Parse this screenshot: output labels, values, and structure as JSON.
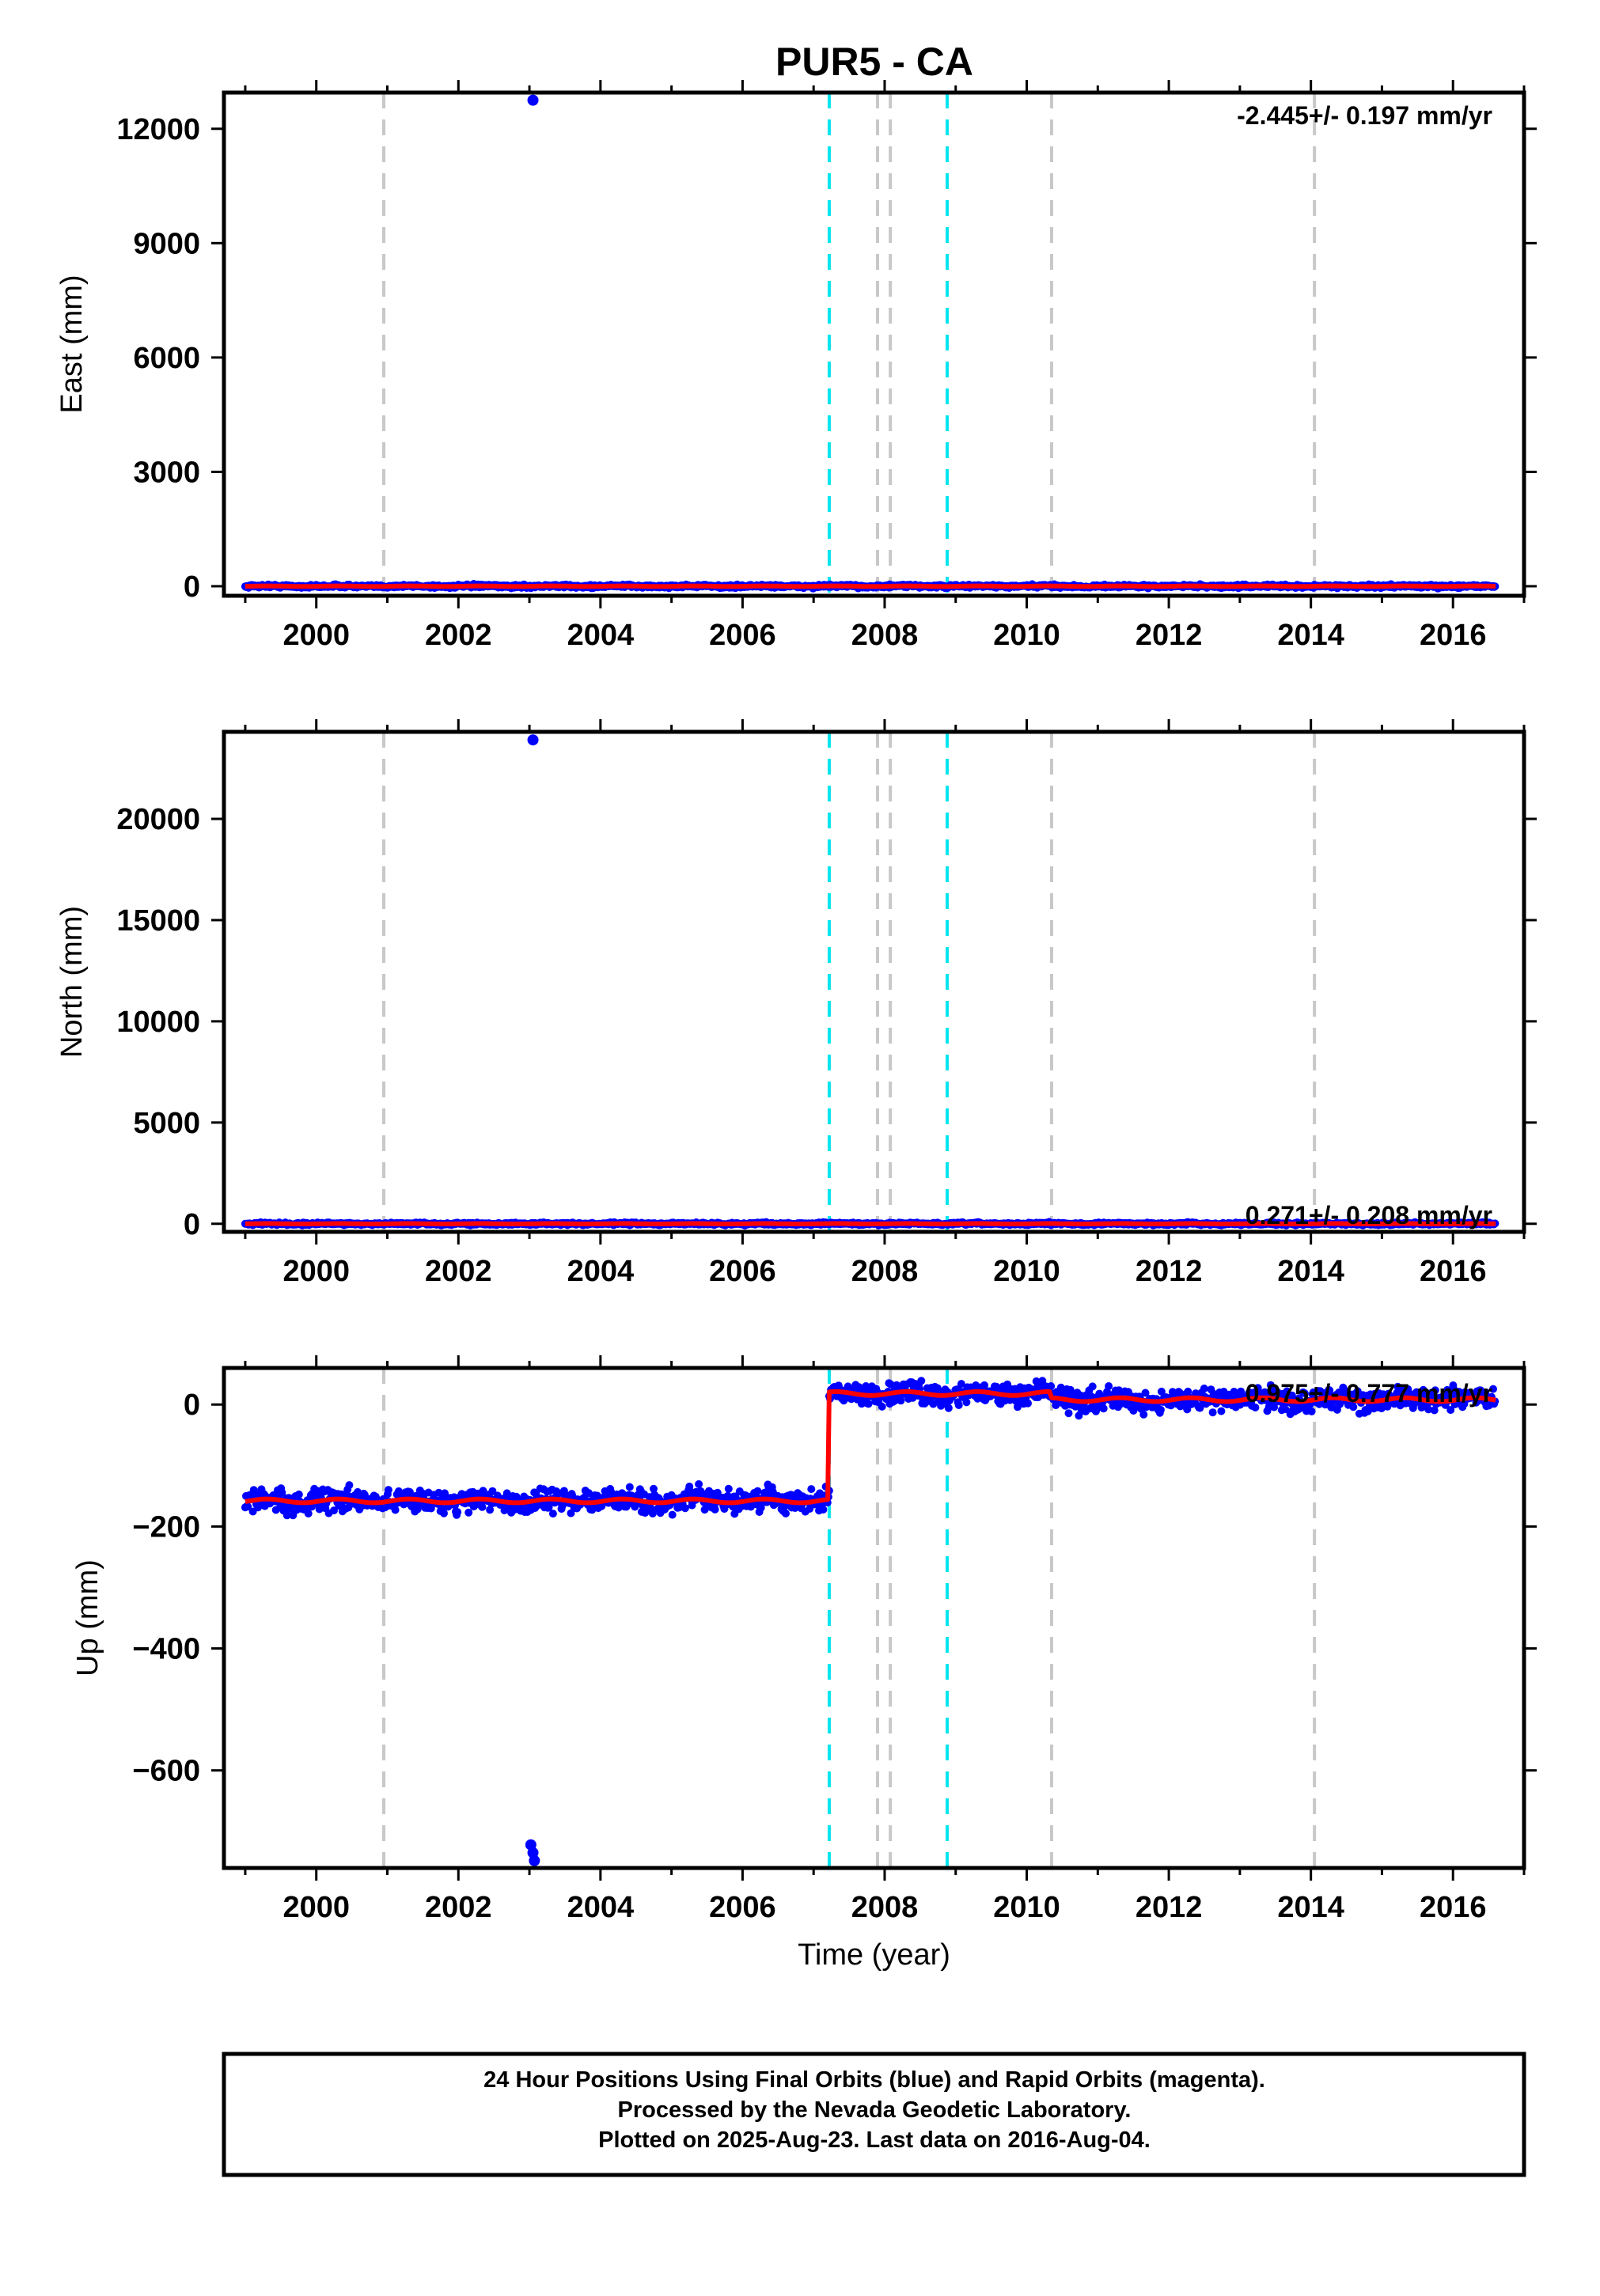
{
  "title": "PUR5 - CA",
  "colors": {
    "final_orbits": "#0000ff",
    "model_fit": "#ff0000",
    "event_gray": "#c8c8c8",
    "event_cyan": "#00e5ee",
    "frame": "#000000"
  },
  "chart_data": [
    {
      "type": "scatter",
      "id": "east",
      "ylabel": "East (mm)",
      "xlabel": "",
      "xlim": [
        1998.7,
        2017.0
      ],
      "ylim": [
        -250,
        12950
      ],
      "x_ticks": [
        "2000",
        "2002",
        "2004",
        "2006",
        "2008",
        "2010",
        "2012",
        "2014",
        "2016"
      ],
      "y_ticks": [
        "0",
        "3000",
        "6000",
        "9000",
        "12000"
      ],
      "rate_annotation": "-2.445+/- 0.197 mm/yr",
      "series": [
        {
          "name": "Final Orbits (blue)",
          "baseline_segments": [
            {
              "x": [
                1999.0,
                2016.6
              ],
              "y": 0
            }
          ],
          "scatter_mm": 20
        },
        {
          "name": "",
          "outliers": [
            {
              "x": 2003.05,
              "y": 12750
            }
          ]
        }
      ],
      "grid": false,
      "legend": "none"
    },
    {
      "type": "scatter",
      "id": "north",
      "ylabel": "North (mm)",
      "xlabel": "",
      "xlim": [
        1998.7,
        2017.0
      ],
      "ylim": [
        -400,
        24300
      ],
      "x_ticks": [
        "2000",
        "2002",
        "2004",
        "2006",
        "2008",
        "2010",
        "2012",
        "2014",
        "2016"
      ],
      "y_ticks": [
        "0",
        "5000",
        "10000",
        "15000",
        "20000"
      ],
      "rate_annotation": "0.271+/- 0.208 mm/yr",
      "series": [
        {
          "name": "Final Orbits (blue)",
          "baseline_segments": [
            {
              "x": [
                1999.0,
                2016.6
              ],
              "y": 0
            }
          ],
          "scatter_mm": 30
        },
        {
          "name": "",
          "outliers": [
            {
              "x": 2003.05,
              "y": 23900
            }
          ]
        }
      ],
      "grid": false,
      "legend": "none"
    },
    {
      "type": "scatter",
      "id": "up",
      "ylabel": "Up (mm)",
      "xlabel": "Time (year)",
      "xlim": [
        1998.7,
        2017.0
      ],
      "ylim": [
        -760,
        60
      ],
      "x_ticks": [
        "2000",
        "2002",
        "2004",
        "2006",
        "2008",
        "2010",
        "2012",
        "2014",
        "2016"
      ],
      "y_ticks": [
        "0",
        "−200",
        "−400",
        "−600"
      ],
      "rate_annotation": "0.975+/- 0.777 mm/yr",
      "series": [
        {
          "name": "Final Orbits (blue)",
          "baseline_segments": [
            {
              "x": [
                1999.0,
                2007.22
              ],
              "y": -158
            },
            {
              "x": [
                2007.22,
                2010.35
              ],
              "y": 18
            },
            {
              "x": [
                2010.35,
                2016.6
              ],
              "y": 8
            }
          ],
          "scatter_mm": 9
        },
        {
          "name": "",
          "outliers": [
            {
              "x": 2003.02,
              "y": -722
            },
            {
              "x": 2003.05,
              "y": -735
            },
            {
              "x": 2003.07,
              "y": -748
            }
          ]
        }
      ],
      "grid": false,
      "legend": "none"
    }
  ],
  "events": [
    {
      "year": 2000.95,
      "kind": "gray"
    },
    {
      "year": 2007.22,
      "kind": "cyan"
    },
    {
      "year": 2007.9,
      "kind": "gray"
    },
    {
      "year": 2008.08,
      "kind": "gray"
    },
    {
      "year": 2008.88,
      "kind": "cyan"
    },
    {
      "year": 2010.35,
      "kind": "gray"
    },
    {
      "year": 2014.05,
      "kind": "gray"
    }
  ],
  "footer": {
    "line1": "24 Hour Positions Using Final Orbits (blue) and Rapid Orbits (magenta).",
    "line2": "Processed by the Nevada Geodetic Laboratory.",
    "line3": "Plotted on 2025-Aug-23. Last data on 2016-Aug-04."
  }
}
